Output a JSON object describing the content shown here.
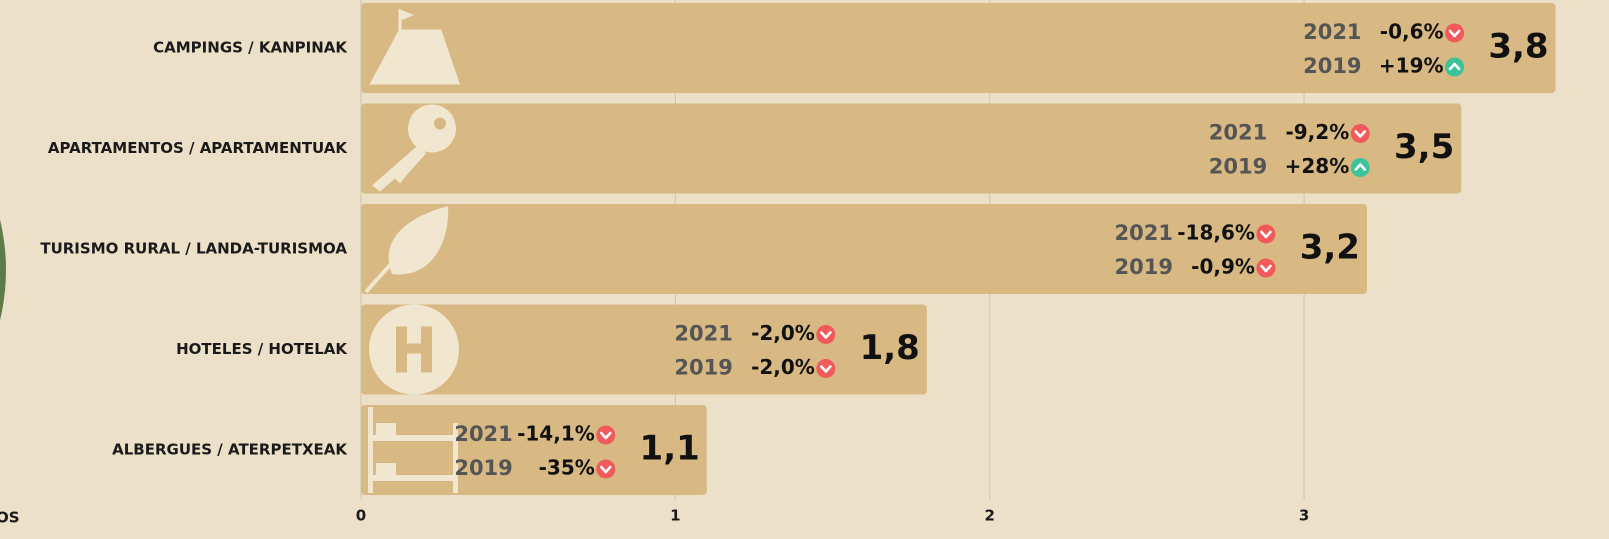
{
  "chart_data": {
    "type": "bar",
    "orientation": "horizontal",
    "categories": [
      "CAMPINGS / KANPINAK",
      "APARTAMENTOS / APARTAMENTUAK",
      "TURISMO RURAL / LANDA-TURISMOA",
      "HOTELES / HOTELAK",
      "ALBERGUES / ATERPETXEAK"
    ],
    "values": [
      3.8,
      3.5,
      3.2,
      1.8,
      1.1
    ],
    "value_labels": [
      "3,8",
      "3,5",
      "3,2",
      "1,8",
      "1,1"
    ],
    "color": "#d9b983",
    "comparisons": [
      {
        "year": "2021",
        "values": [
          -0.6,
          -9.2,
          -18.6,
          -2.0,
          -14.1
        ],
        "value_labels": [
          "-0,6%",
          "-9,2%",
          "-18,6%",
          "-2,0%",
          "-14,1%"
        ]
      },
      {
        "year": "2019",
        "values": [
          19,
          28,
          -0.9,
          -2.0,
          -35
        ],
        "value_labels": [
          "+19%",
          "+28%",
          "-0,9%",
          "-2,0%",
          "-35%"
        ]
      }
    ],
    "up_color": "#3cc39a",
    "down_color": "#f05a5a",
    "xlim": [
      0,
      3.97
    ],
    "xticks": [
      0,
      1,
      2,
      3
    ],
    "grid": true,
    "footnote": "OS"
  }
}
